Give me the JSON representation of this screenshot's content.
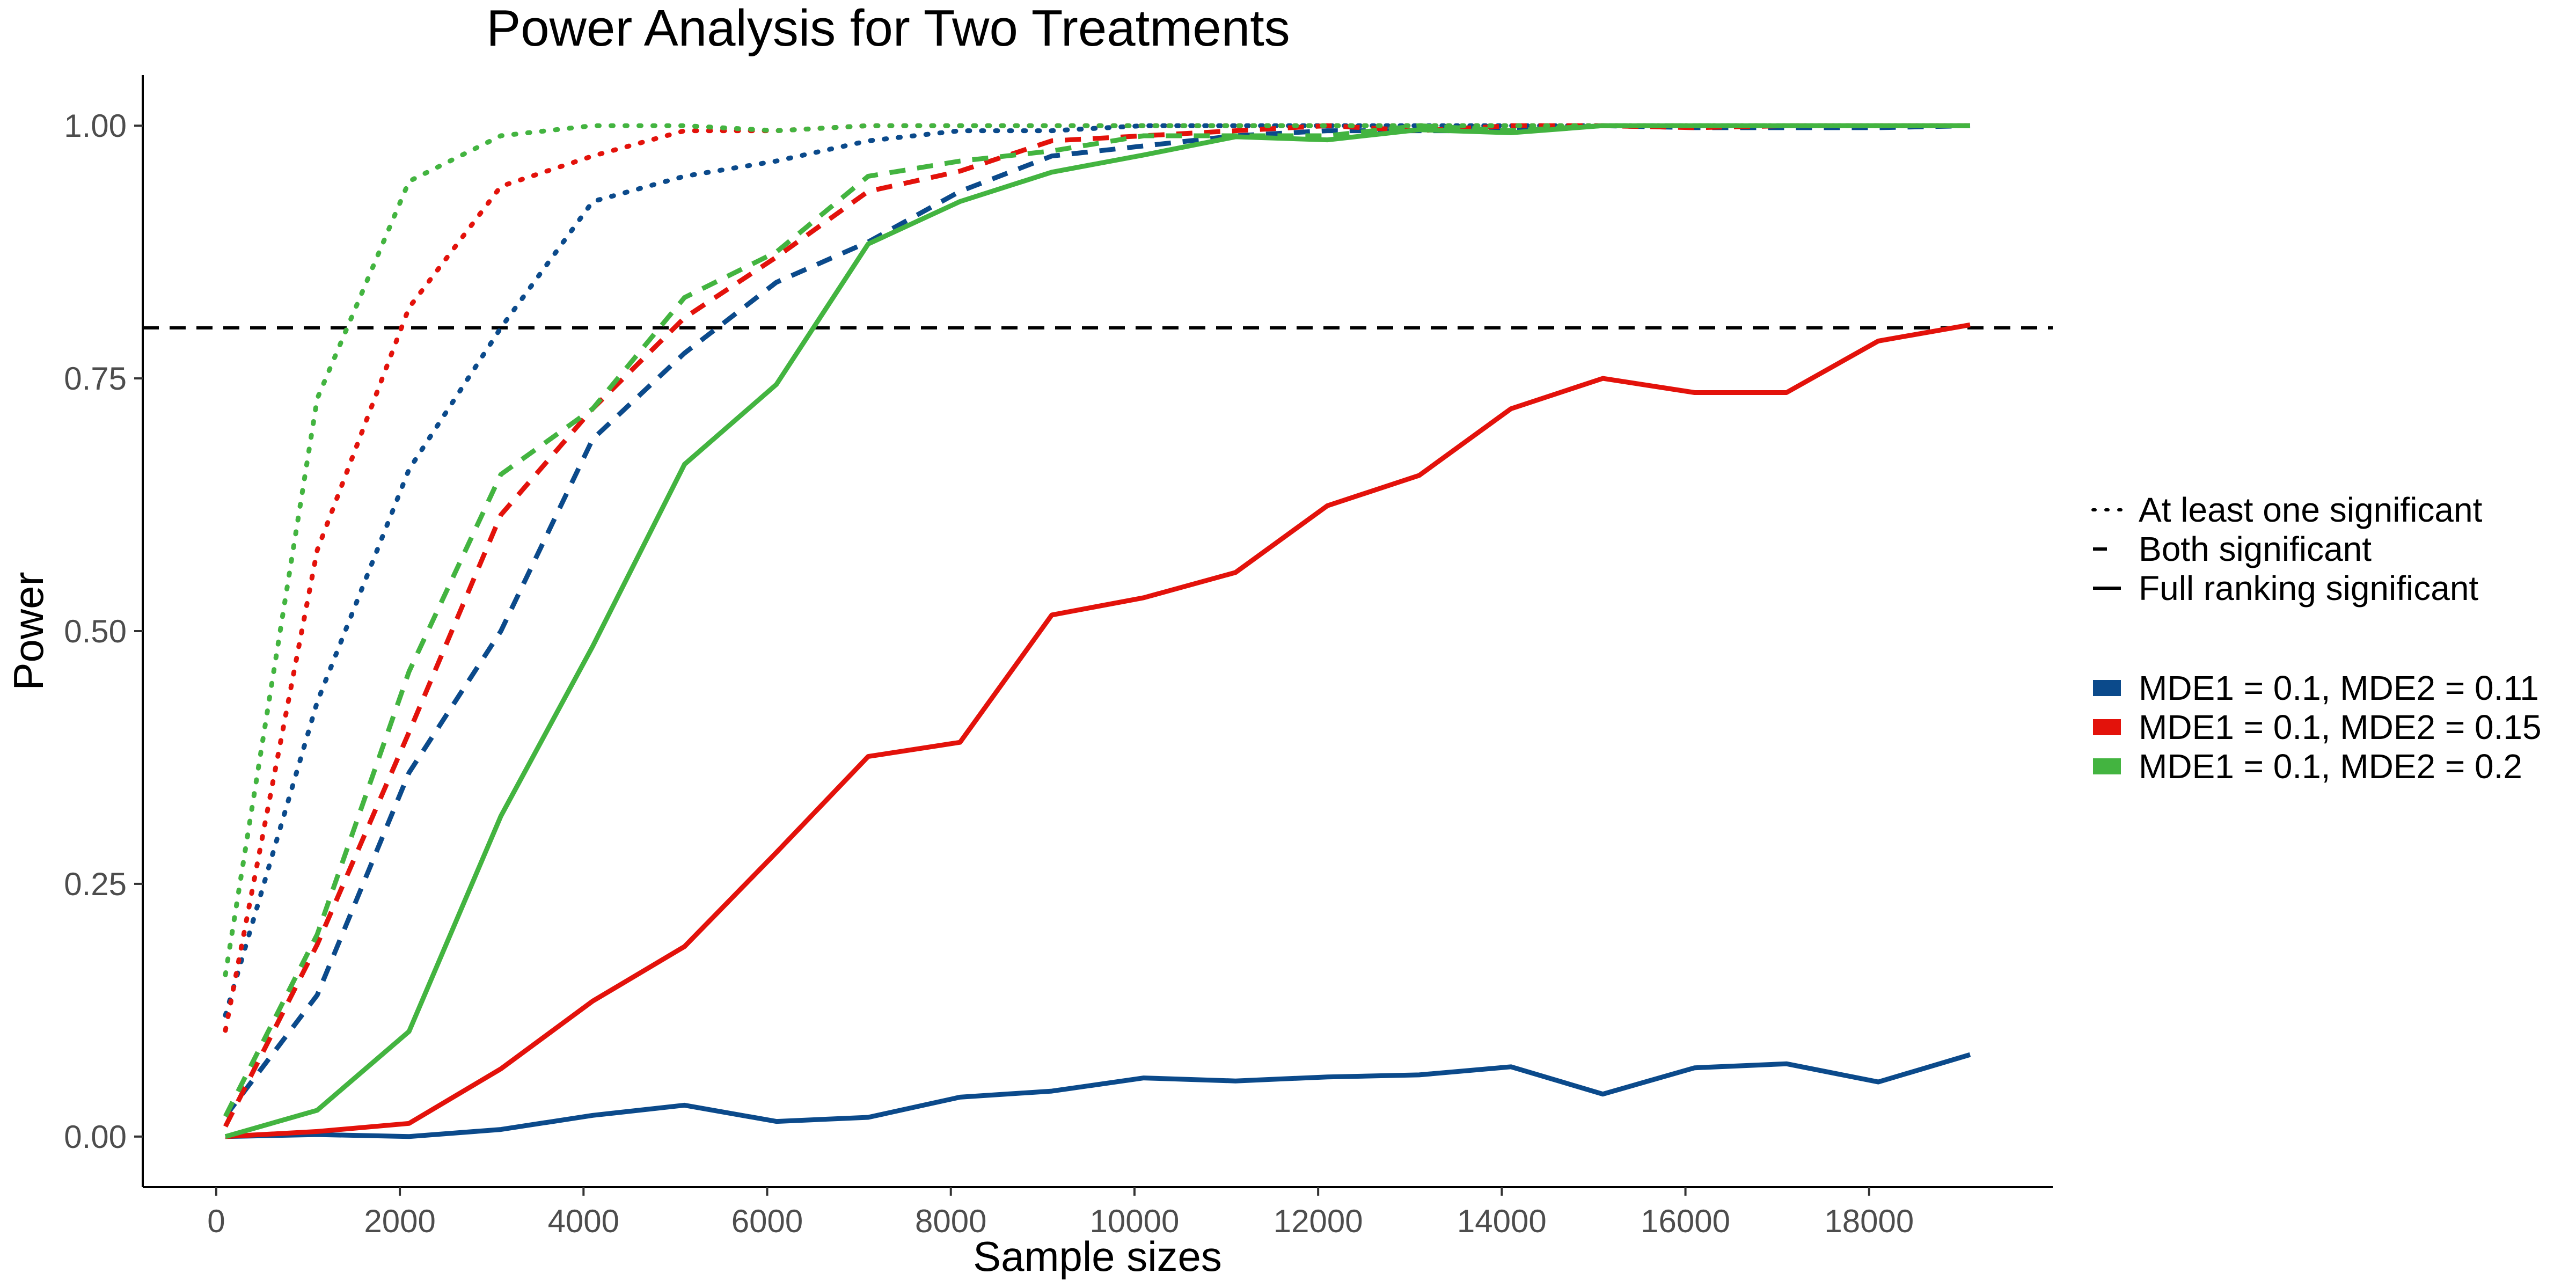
{
  "chart_data": {
    "type": "line",
    "title": "Power Analysis for Two Treatments",
    "xlabel": "Sample sizes",
    "ylabel": "Power",
    "xlim": [
      -800,
      20000
    ],
    "ylim": [
      -0.05,
      1.05
    ],
    "x_ticks": [
      0,
      2000,
      4000,
      6000,
      8000,
      10000,
      12000,
      14000,
      16000,
      18000
    ],
    "y_ticks": [
      "0.00",
      "0.25",
      "0.50",
      "0.75",
      "1.00"
    ],
    "reference_line": {
      "y": 0.8,
      "style": "dashed",
      "color": "#000000"
    },
    "grid": false,
    "legend_position": "right",
    "x": [
      100,
      1100,
      2100,
      3100,
      4100,
      5100,
      6100,
      7100,
      8100,
      9100,
      10100,
      11100,
      12100,
      13100,
      14100,
      15100,
      16100,
      17100,
      18100,
      19100
    ],
    "linetype_legend": [
      {
        "label": "At least one significant",
        "dash": "dotted"
      },
      {
        "label": "Both significant",
        "dash": "dashed"
      },
      {
        "label": "Full ranking significant",
        "dash": "solid"
      }
    ],
    "color_legend": [
      {
        "label": "MDE1 = 0.1, MDE2 = 0.11",
        "color": "#0b4a8b"
      },
      {
        "label": "MDE1 = 0.1, MDE2 = 0.15",
        "color": "#e3120b"
      },
      {
        "label": "MDE1 = 0.1, MDE2 = 0.2",
        "color": "#43b440"
      }
    ],
    "series": [
      {
        "group": "MDE1 = 0.1, MDE2 = 0.11",
        "linetype": "At least one significant",
        "color": "#0b4a8b",
        "values": [
          0.12,
          0.43,
          0.66,
          0.8,
          0.925,
          0.95,
          0.965,
          0.985,
          0.995,
          0.995,
          1.0,
          1.0,
          1.0,
          1.0,
          1.0,
          1.0,
          1.0,
          1.0,
          1.0,
          1.0
        ]
      },
      {
        "group": "MDE1 = 0.1, MDE2 = 0.11",
        "linetype": "Both significant",
        "color": "#0b4a8b",
        "values": [
          0.02,
          0.14,
          0.36,
          0.5,
          0.69,
          0.775,
          0.845,
          0.885,
          0.935,
          0.97,
          0.98,
          0.99,
          0.995,
          0.995,
          0.995,
          1.0,
          0.998,
          0.998,
          0.998,
          1.0
        ]
      },
      {
        "group": "MDE1 = 0.1, MDE2 = 0.11",
        "linetype": "Full ranking significant",
        "color": "#0b4a8b",
        "values": [
          0.0,
          0.002,
          0.0,
          0.007,
          0.021,
          0.031,
          0.015,
          0.019,
          0.039,
          0.045,
          0.058,
          0.055,
          0.059,
          0.061,
          0.069,
          0.042,
          0.068,
          0.072,
          0.054,
          0.081
        ]
      },
      {
        "group": "MDE1 = 0.1, MDE2 = 0.15",
        "linetype": "At least one significant",
        "color": "#e3120b",
        "values": [
          0.105,
          0.58,
          0.82,
          0.94,
          0.97,
          0.995,
          0.995,
          1.0,
          1.0,
          1.0,
          1.0,
          1.0,
          1.0,
          1.0,
          1.0,
          1.0,
          1.0,
          1.0,
          1.0,
          1.0
        ]
      },
      {
        "group": "MDE1 = 0.1, MDE2 = 0.15",
        "linetype": "Both significant",
        "color": "#e3120b",
        "values": [
          0.01,
          0.19,
          0.4,
          0.615,
          0.72,
          0.81,
          0.87,
          0.935,
          0.955,
          0.985,
          0.99,
          0.995,
          1.0,
          0.995,
          1.0,
          1.0,
          0.998,
          1.0,
          1.0,
          1.0
        ]
      },
      {
        "group": "MDE1 = 0.1, MDE2 = 0.15",
        "linetype": "Full ranking significant",
        "color": "#e3120b",
        "values": [
          0.0,
          0.005,
          0.013,
          0.067,
          0.134,
          0.188,
          0.281,
          0.376,
          0.39,
          0.516,
          0.533,
          0.558,
          0.624,
          0.654,
          0.72,
          0.75,
          0.736,
          0.736,
          0.787,
          0.803
        ]
      },
      {
        "group": "MDE1 = 0.1, MDE2 = 0.2",
        "linetype": "At least one significant",
        "color": "#43b440",
        "values": [
          0.16,
          0.73,
          0.945,
          0.99,
          1.0,
          1.0,
          0.995,
          1.0,
          1.0,
          1.0,
          1.0,
          1.0,
          1.0,
          1.0,
          1.0,
          1.0,
          1.0,
          1.0,
          1.0,
          1.0
        ]
      },
      {
        "group": "MDE1 = 0.1, MDE2 = 0.2",
        "linetype": "Both significant",
        "color": "#43b440",
        "values": [
          0.02,
          0.2,
          0.46,
          0.655,
          0.72,
          0.83,
          0.875,
          0.95,
          0.965,
          0.975,
          0.99,
          0.99,
          0.99,
          1.0,
          0.995,
          1.0,
          1.0,
          1.0,
          1.0,
          1.0
        ]
      },
      {
        "group": "MDE1 = 0.1, MDE2 = 0.2",
        "linetype": "Full ranking significant",
        "color": "#43b440",
        "values": [
          0.0,
          0.026,
          0.104,
          0.317,
          0.485,
          0.665,
          0.744,
          0.883,
          0.925,
          0.954,
          0.971,
          0.989,
          0.986,
          0.996,
          0.993,
          1.0,
          1.0,
          1.0,
          1.0,
          1.0
        ]
      }
    ]
  }
}
